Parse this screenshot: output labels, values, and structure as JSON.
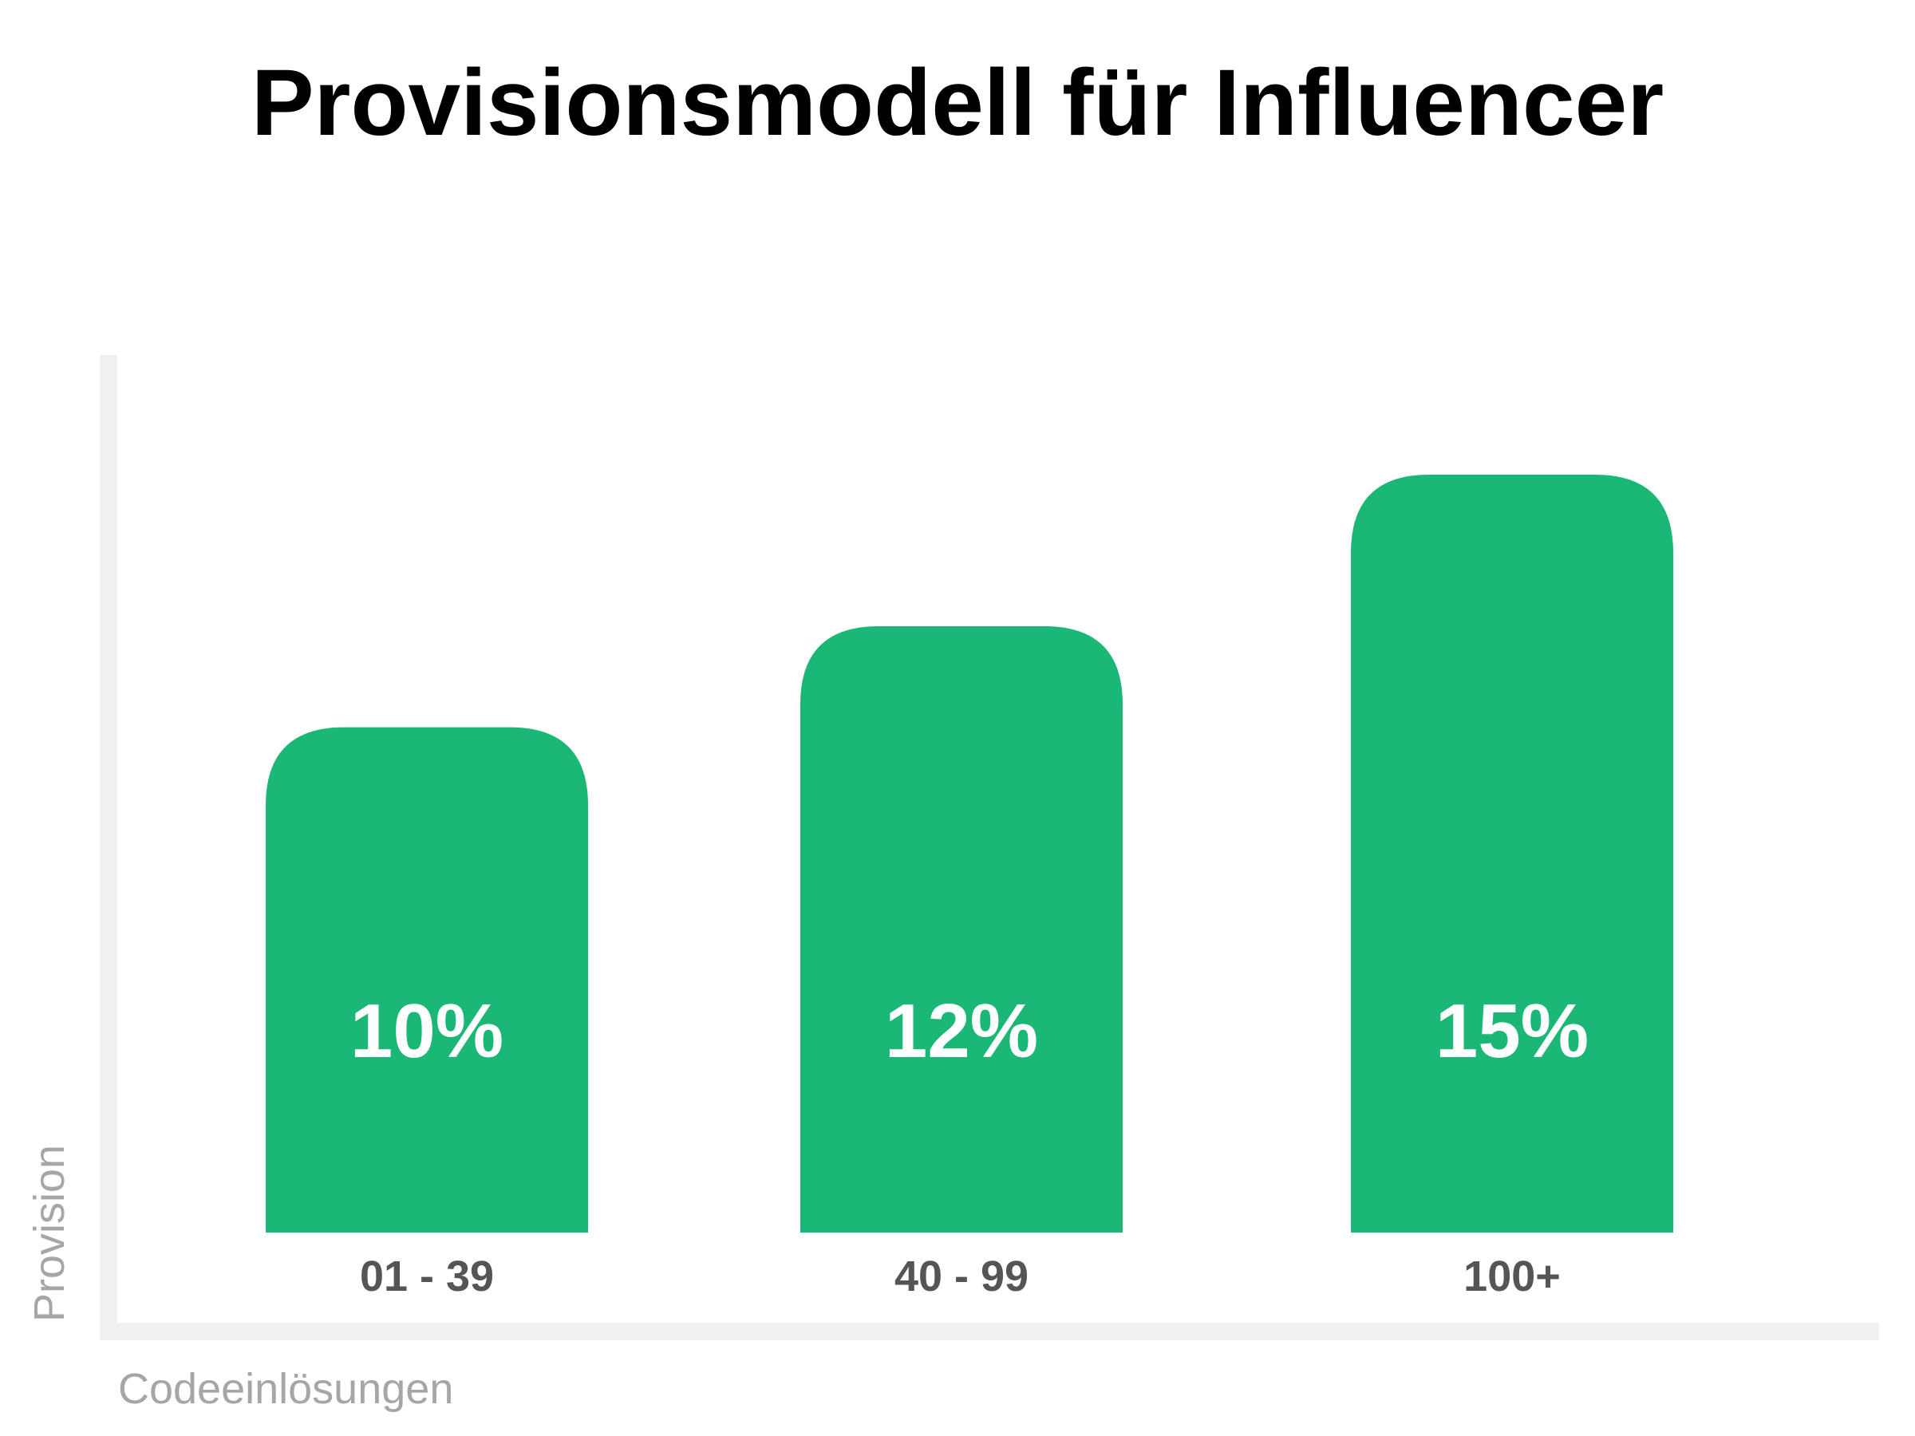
{
  "chart_data": {
    "type": "bar",
    "title": "Provisionsmodell für Influencer",
    "xlabel": "Codeeinlösungen",
    "ylabel": "Provision",
    "categories": [
      "01 - 39",
      "40 - 99",
      "100+"
    ],
    "values": [
      10,
      12,
      15
    ],
    "value_labels": [
      "10%",
      "12%",
      "15%"
    ],
    "unit": "%",
    "ylim": [
      0,
      18
    ],
    "grid": false,
    "legend": "none",
    "colors": {
      "bar": "#1bb776",
      "bar_label": "#ffffff",
      "tick_label": "#555555",
      "axis_line": "#f0f0f0",
      "axis_title": "#a6a6a6",
      "title": "#000000"
    }
  }
}
